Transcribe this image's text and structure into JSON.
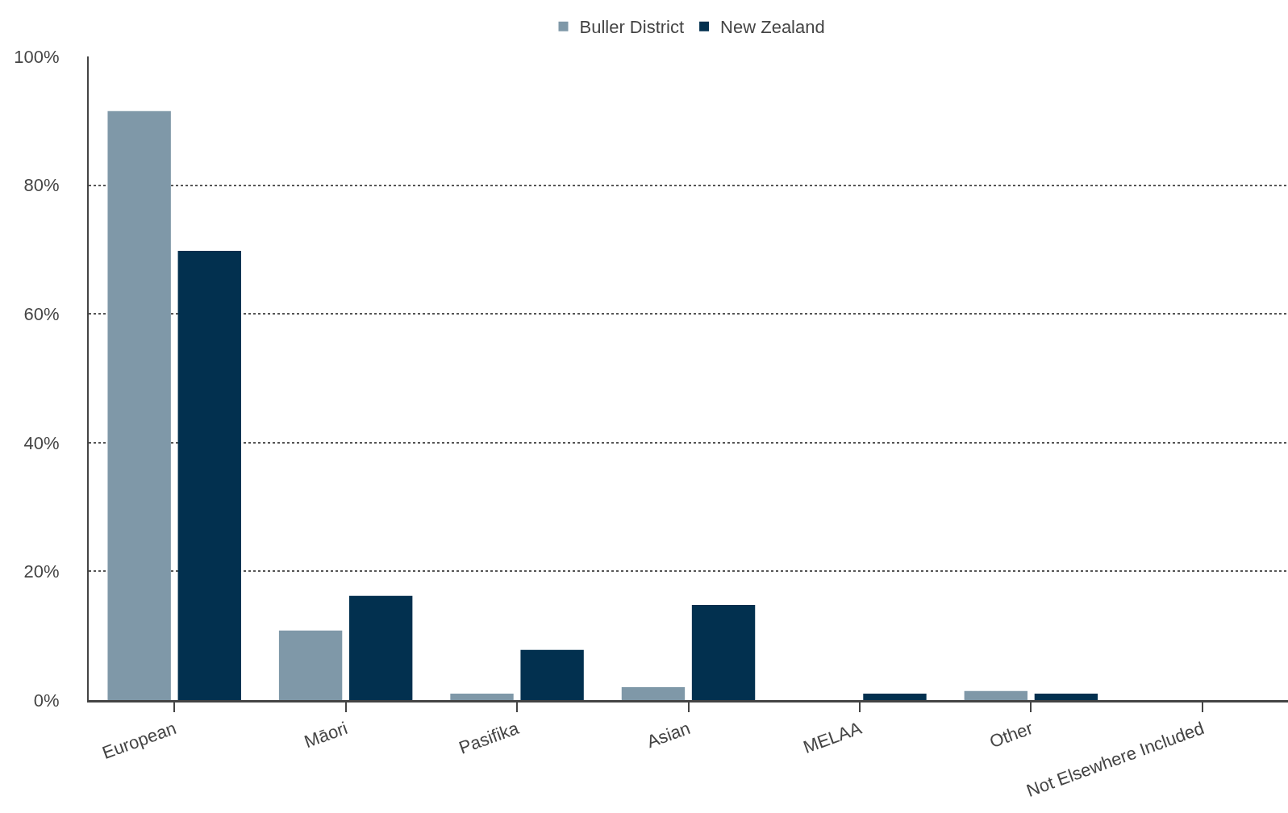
{
  "chart_data": {
    "type": "bar",
    "categories": [
      "European",
      "Māori",
      "Pasifika",
      "Asian",
      "MELAA",
      "Other",
      "Not Elsewhere Included"
    ],
    "series": [
      {
        "name": "Buller District",
        "color": "#7f98a8",
        "values": [
          91.5,
          10.8,
          1.0,
          2.0,
          0,
          1.4,
          0
        ]
      },
      {
        "name": "New Zealand",
        "color": "#02304f",
        "values": [
          69.8,
          16.2,
          7.8,
          14.8,
          1.0,
          1.0,
          0
        ]
      }
    ],
    "ylim": [
      0,
      100
    ],
    "yticks": [
      {
        "value": 0,
        "label": "0%"
      },
      {
        "value": 20,
        "label": "20%"
      },
      {
        "value": 40,
        "label": "40%"
      },
      {
        "value": 60,
        "label": "60%"
      },
      {
        "value": 80,
        "label": "80%"
      },
      {
        "value": 100,
        "label": "100%"
      }
    ],
    "grid": "y",
    "legend": "top"
  }
}
